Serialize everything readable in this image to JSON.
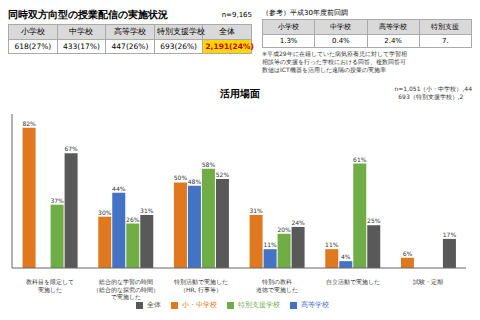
{
  "chart_data": {
    "type": "bar",
    "title": "同時双方向型の授業配信の実施状況",
    "subtitle": "活用場面",
    "tables": [
      {
        "headers": [
          "小学校",
          "中学校",
          "高等学校",
          "特別支援学校",
          "全体"
        ],
        "values": [
          "618(27%)",
          "433(17%)",
          "447(26%)",
          "693(26%)",
          "2,191(24%)"
        ],
        "note": "n=9,165"
      },
      {
        "title": "（参考）平成30年度前回調",
        "headers": [
          "小学校",
          "中学校",
          "高等学校",
          "特別支援"
        ],
        "values": [
          "1.3%",
          "0.4%",
          "2.4%",
          "7."
        ],
        "note": "※平成29年に在籍していた病気療養児に対して学習相\n相談等の支援を行った学校における回答、複数回答可\n数値はICT機器を活用した遠隔の授業の実施率"
      }
    ],
    "annotations": [
      "n=1,051（小・中学校）,44\n  693（特別支援学校）,2"
    ],
    "categories": [
      "教科目を限定して\n実施した",
      "総合的な学習の時間\n（総合的な探究の時間）\nで実施した",
      "特別活動で実施した\n（HR, 行事等）",
      "特別の教科\n道徳で実施した",
      "自立活動で実施した",
      "試験・定期"
    ],
    "series": [
      {
        "name": "小・中学校",
        "color": "#E07820",
        "values": [
          82,
          30,
          50,
          31,
          11,
          6
        ],
        "value_labels": [
          "82%",
          "30%",
          "50%",
          "31%",
          "11%",
          "6%"
        ]
      },
      {
        "name": "高等学校",
        "color": "#4472C4",
        "values": [
          null,
          44,
          48,
          11,
          4,
          null
        ],
        "value_labels": [
          null,
          "44%",
          "48%",
          "11%",
          "4%",
          null
        ]
      },
      {
        "name": "特別支援学校",
        "color": "#70AD47",
        "values": [
          37,
          26,
          58,
          20,
          61,
          null
        ],
        "value_labels": [
          "37%",
          "26%",
          "58%",
          "20%",
          "61%",
          null
        ]
      },
      {
        "name": "全体",
        "color": "#595959",
        "values": [
          67,
          31,
          52,
          24,
          25,
          17
        ],
        "value_labels": [
          "67%",
          "31%",
          "52%",
          "24%",
          "25%",
          "17%"
        ]
      }
    ],
    "ylim": [
      0,
      90
    ],
    "grid": false,
    "legend": "bottom",
    "data_labels": true,
    "tick_labels": "x"
  }
}
